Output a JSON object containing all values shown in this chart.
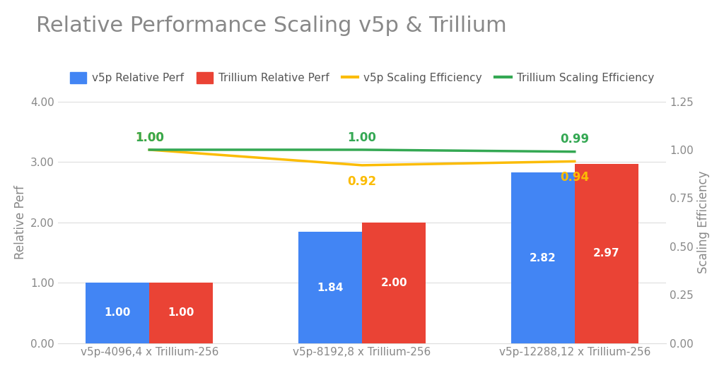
{
  "title": "Relative Performance Scaling v5p & Trillium",
  "categories": [
    "v5p-4096,4 x Trillium-256",
    "v5p-8192,8 x Trillium-256",
    "v5p-12288,12 x Trillium-256"
  ],
  "v5p_perf": [
    1.0,
    1.84,
    2.82
  ],
  "trillium_perf": [
    1.0,
    2.0,
    2.97
  ],
  "v5p_efficiency": [
    1.0,
    0.92,
    0.94
  ],
  "trillium_efficiency": [
    1.0,
    1.0,
    0.99
  ],
  "v5p_bar_color": "#4285F4",
  "trillium_bar_color": "#EA4335",
  "v5p_line_color": "#FBBC04",
  "trillium_line_color": "#34A853",
  "bar_label_color": "#FFFFFF",
  "line_label_color_v5p": "#FBBC04",
  "line_label_color_trillium": "#34A853",
  "ylabel_left": "Relative Perf",
  "ylabel_right": "Scaling Efficiency",
  "ylim_left": [
    0.0,
    4.0
  ],
  "ylim_right": [
    0.0,
    1.25
  ],
  "yticks_left": [
    0.0,
    1.0,
    2.0,
    3.0,
    4.0
  ],
  "ytick_labels_left": [
    "0.00",
    "1.00",
    "2.00",
    "3.00",
    "4.00"
  ],
  "yticks_right": [
    0.0,
    0.25,
    0.5,
    0.75,
    1.0,
    1.25
  ],
  "ytick_labels_right": [
    "0.00",
    "0.25",
    "0.50",
    "0.75",
    "1.00",
    "1.25"
  ],
  "background_color": "#FFFFFF",
  "title_color": "#888888",
  "title_fontsize": 22,
  "axis_label_fontsize": 12,
  "tick_fontsize": 11,
  "tick_color": "#888888",
  "bar_label_fontsize": 11,
  "line_label_fontsize": 12,
  "legend_fontsize": 11,
  "legend_text_color": "#555555",
  "grid_color": "#DDDDDD",
  "bar_width": 0.3,
  "line_width": 2.5,
  "legend_entries": [
    "v5p Relative Perf",
    "Trillium Relative Perf",
    "v5p Scaling Efficiency",
    "Trillium Scaling Efficiency"
  ]
}
